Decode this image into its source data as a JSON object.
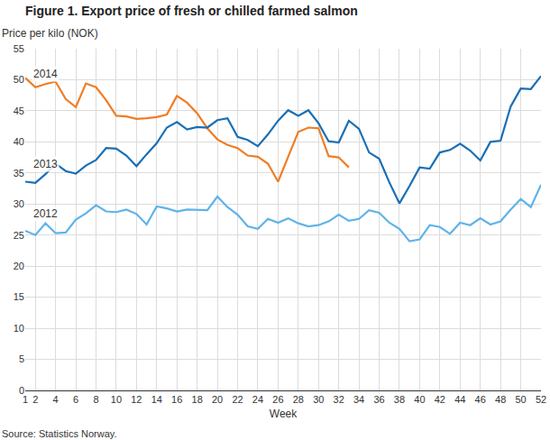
{
  "chart_data": {
    "type": "line",
    "title": "Figure 1. Export price of fresh or chilled farmed salmon",
    "y_label": "Price per kilo (NOK)",
    "x_label": "Week",
    "source": "Source: Statistics Norway.",
    "x": [
      1,
      2,
      3,
      4,
      5,
      6,
      7,
      8,
      9,
      10,
      11,
      12,
      13,
      14,
      15,
      16,
      17,
      18,
      19,
      20,
      21,
      22,
      23,
      24,
      25,
      26,
      27,
      28,
      29,
      30,
      31,
      32,
      33,
      34,
      35,
      36,
      37,
      38,
      39,
      40,
      41,
      42,
      43,
      44,
      45,
      46,
      47,
      48,
      49,
      50,
      51,
      52
    ],
    "series": [
      {
        "name": "2014",
        "color": "#f07d24",
        "values": [
          50.3,
          48.8,
          49.3,
          49.7,
          46.9,
          45.6,
          49.4,
          48.8,
          46.7,
          44.2,
          44.1,
          43.7,
          43.8,
          44.0,
          44.4,
          47.4,
          46.3,
          44.6,
          42.2,
          40.4,
          39.5,
          39.0,
          37.8,
          37.6,
          36.5,
          33.6,
          37.6,
          41.6,
          42.3,
          42.2,
          37.7,
          37.5,
          35.9,
          null,
          null,
          null,
          null,
          null,
          null,
          null,
          null,
          null,
          null,
          null,
          null,
          null,
          null,
          null,
          null,
          null,
          null,
          null
        ]
      },
      {
        "name": "2013",
        "color": "#1a6fb5",
        "values": [
          33.6,
          33.4,
          34.8,
          36.5,
          35.3,
          34.9,
          36.2,
          37.1,
          39.0,
          38.9,
          37.8,
          36.1,
          38.0,
          39.8,
          42.3,
          43.2,
          42.0,
          42.4,
          42.3,
          43.5,
          43.8,
          40.8,
          40.3,
          39.3,
          41.2,
          43.4,
          45.1,
          44.2,
          45.1,
          43.0,
          40.1,
          39.9,
          43.4,
          42.1,
          38.3,
          37.3,
          33.5,
          30.1,
          32.9,
          35.9,
          35.7,
          38.3,
          38.7,
          39.7,
          38.6,
          37.0,
          40.0,
          40.2,
          45.7,
          48.6,
          48.5,
          50.6
        ]
      },
      {
        "name": "2012",
        "color": "#5fb3e8",
        "values": [
          25.7,
          25.0,
          26.9,
          25.3,
          25.4,
          27.5,
          28.5,
          29.8,
          28.8,
          28.7,
          29.1,
          28.4,
          26.7,
          29.6,
          29.3,
          28.8,
          29.1,
          29.1,
          29.0,
          31.2,
          29.5,
          28.3,
          26.4,
          26.0,
          27.6,
          27.0,
          27.7,
          26.9,
          26.4,
          26.6,
          27.2,
          28.3,
          27.3,
          27.6,
          29.0,
          28.6,
          27.0,
          26.0,
          24.0,
          24.3,
          26.6,
          26.3,
          25.2,
          27.0,
          26.6,
          27.7,
          26.7,
          27.2,
          29.1,
          30.8,
          29.5,
          33.1
        ]
      }
    ],
    "xlim": [
      1,
      52
    ],
    "ylim": [
      0,
      55
    ],
    "xticks": [
      1,
      2,
      4,
      6,
      8,
      10,
      12,
      14,
      16,
      18,
      20,
      22,
      24,
      26,
      28,
      30,
      32,
      34,
      36,
      38,
      40,
      42,
      44,
      46,
      48,
      50,
      52
    ],
    "yticks": [
      0,
      5,
      10,
      15,
      20,
      25,
      30,
      35,
      40,
      45,
      50,
      55
    ],
    "grid": true
  }
}
